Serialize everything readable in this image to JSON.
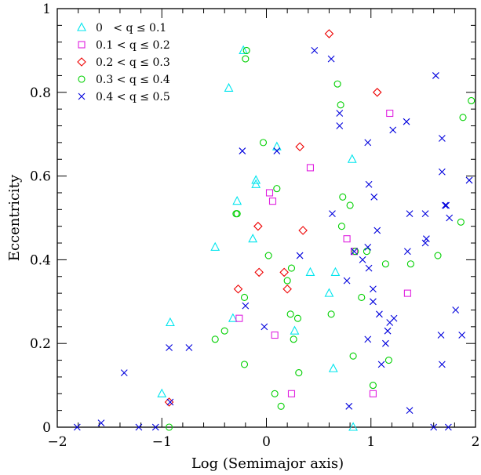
{
  "chart_data": {
    "type": "scatter",
    "title": "",
    "xlabel": "Log (Semimajor axis)",
    "ylabel": "Eccentricity",
    "xlim": [
      -2,
      2
    ],
    "ylim": [
      0,
      1
    ],
    "xticks": [
      "−2",
      "−1",
      "0",
      "1",
      "2"
    ],
    "yticks": [
      "0",
      "0.2",
      "0.4",
      "0.6",
      "0.8",
      "1"
    ],
    "grid": false,
    "legend_position": "top-left",
    "series": [
      {
        "name": "0   < q ≤ 0.1",
        "marker": "triangle",
        "color": "#00e5ee",
        "points": [
          [
            -0.22,
            0.9
          ],
          [
            -0.36,
            0.81
          ],
          [
            -0.92,
            0.25
          ],
          [
            -1.0,
            0.08
          ],
          [
            -0.49,
            0.43
          ],
          [
            -0.28,
            0.54
          ],
          [
            -0.1,
            0.59
          ],
          [
            -0.1,
            0.58
          ],
          [
            0.1,
            0.67
          ],
          [
            -0.13,
            0.45
          ],
          [
            -0.32,
            0.26
          ],
          [
            0.27,
            0.23
          ],
          [
            0.42,
            0.37
          ],
          [
            0.82,
            0.64
          ],
          [
            0.6,
            0.32
          ],
          [
            0.66,
            0.37
          ],
          [
            0.64,
            0.14
          ],
          [
            0.83,
            0.0
          ]
        ]
      },
      {
        "name": "0.1 < q ≤ 0.2",
        "marker": "square",
        "color": "#e020e0",
        "points": [
          [
            0.03,
            0.56
          ],
          [
            0.06,
            0.54
          ],
          [
            0.42,
            0.62
          ],
          [
            -0.26,
            0.26
          ],
          [
            0.08,
            0.22
          ],
          [
            0.24,
            0.08
          ],
          [
            0.77,
            0.45
          ],
          [
            0.84,
            0.42
          ],
          [
            1.02,
            0.08
          ],
          [
            1.18,
            0.75
          ],
          [
            1.35,
            0.32
          ]
        ]
      },
      {
        "name": "0.2 < q ≤ 0.3",
        "marker": "diamond",
        "color": "#ee0000",
        "points": [
          [
            0.6,
            0.94
          ],
          [
            1.06,
            0.8
          ],
          [
            0.32,
            0.67
          ],
          [
            -0.08,
            0.48
          ],
          [
            0.35,
            0.47
          ],
          [
            -0.07,
            0.37
          ],
          [
            0.17,
            0.37
          ],
          [
            -0.27,
            0.33
          ],
          [
            0.2,
            0.33
          ],
          [
            -0.93,
            0.06
          ]
        ]
      },
      {
        "name": "0.3 < q ≤ 0.4",
        "marker": "circle",
        "color": "#00d000",
        "points": [
          [
            -0.19,
            0.9
          ],
          [
            -0.2,
            0.88
          ],
          [
            0.68,
            0.82
          ],
          [
            0.71,
            0.77
          ],
          [
            1.96,
            0.78
          ],
          [
            1.88,
            0.74
          ],
          [
            -0.03,
            0.68
          ],
          [
            0.1,
            0.57
          ],
          [
            -0.29,
            0.51
          ],
          [
            -0.28,
            0.51
          ],
          [
            0.73,
            0.55
          ],
          [
            0.8,
            0.53
          ],
          [
            0.72,
            0.48
          ],
          [
            0.85,
            0.42
          ],
          [
            0.96,
            0.42
          ],
          [
            0.02,
            0.41
          ],
          [
            1.86,
            0.49
          ],
          [
            1.64,
            0.41
          ],
          [
            1.14,
            0.39
          ],
          [
            1.38,
            0.39
          ],
          [
            0.24,
            0.38
          ],
          [
            0.2,
            0.35
          ],
          [
            -0.21,
            0.31
          ],
          [
            0.91,
            0.31
          ],
          [
            -0.4,
            0.23
          ],
          [
            -0.49,
            0.21
          ],
          [
            0.62,
            0.27
          ],
          [
            0.23,
            0.27
          ],
          [
            0.3,
            0.26
          ],
          [
            0.26,
            0.21
          ],
          [
            -0.21,
            0.15
          ],
          [
            0.83,
            0.17
          ],
          [
            1.17,
            0.16
          ],
          [
            0.31,
            0.13
          ],
          [
            0.08,
            0.08
          ],
          [
            0.14,
            0.05
          ],
          [
            1.02,
            0.1
          ],
          [
            -0.93,
            0.0
          ]
        ]
      },
      {
        "name": "0.4 < q ≤ 0.5",
        "marker": "cross",
        "color": "#0000dd",
        "points": [
          [
            0.46,
            0.9
          ],
          [
            0.62,
            0.88
          ],
          [
            1.62,
            0.84
          ],
          [
            0.7,
            0.75
          ],
          [
            0.7,
            0.72
          ],
          [
            1.34,
            0.73
          ],
          [
            1.21,
            0.71
          ],
          [
            0.97,
            0.68
          ],
          [
            1.68,
            0.69
          ],
          [
            -0.23,
            0.66
          ],
          [
            0.1,
            0.66
          ],
          [
            1.94,
            0.59
          ],
          [
            1.68,
            0.61
          ],
          [
            0.98,
            0.58
          ],
          [
            1.03,
            0.55
          ],
          [
            1.71,
            0.53
          ],
          [
            1.72,
            0.53
          ],
          [
            0.63,
            0.51
          ],
          [
            1.37,
            0.51
          ],
          [
            1.52,
            0.51
          ],
          [
            1.75,
            0.5
          ],
          [
            1.06,
            0.47
          ],
          [
            1.53,
            0.45
          ],
          [
            1.52,
            0.44
          ],
          [
            0.97,
            0.43
          ],
          [
            0.84,
            0.42
          ],
          [
            0.32,
            0.41
          ],
          [
            0.92,
            0.4
          ],
          [
            0.98,
            0.38
          ],
          [
            1.35,
            0.42
          ],
          [
            0.77,
            0.35
          ],
          [
            1.02,
            0.33
          ],
          [
            1.02,
            0.3
          ],
          [
            1.81,
            0.28
          ],
          [
            1.08,
            0.27
          ],
          [
            1.22,
            0.26
          ],
          [
            1.18,
            0.25
          ],
          [
            1.16,
            0.23
          ],
          [
            -0.2,
            0.29
          ],
          [
            -0.02,
            0.24
          ],
          [
            0.97,
            0.21
          ],
          [
            1.14,
            0.2
          ],
          [
            1.67,
            0.22
          ],
          [
            1.87,
            0.22
          ],
          [
            1.1,
            0.15
          ],
          [
            1.68,
            0.15
          ],
          [
            -0.74,
            0.19
          ],
          [
            -0.93,
            0.19
          ],
          [
            -1.36,
            0.13
          ],
          [
            -0.92,
            0.06
          ],
          [
            0.79,
            0.05
          ],
          [
            1.37,
            0.04
          ],
          [
            -1.81,
            0.0
          ],
          [
            -1.58,
            0.01
          ],
          [
            -1.22,
            0.0
          ],
          [
            -1.06,
            0.0
          ],
          [
            1.6,
            0.0
          ],
          [
            1.74,
            0.0
          ]
        ]
      }
    ]
  }
}
